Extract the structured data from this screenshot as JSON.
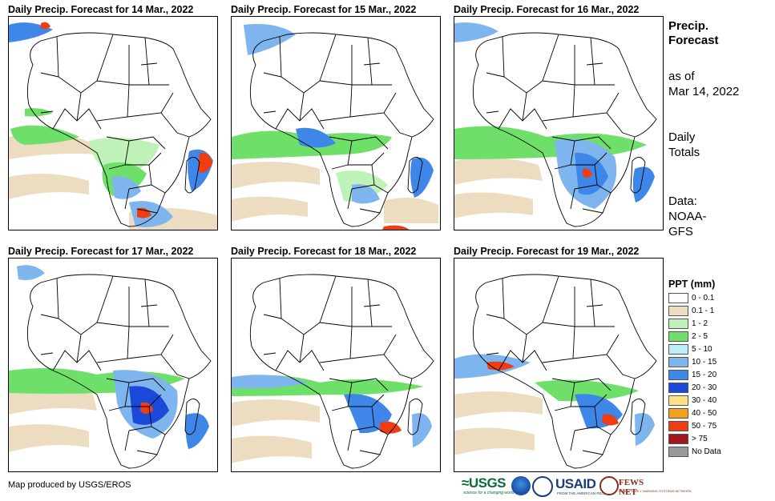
{
  "panels": [
    {
      "title": "Daily Precip. Forecast for 14 Mar., 2022"
    },
    {
      "title": "Daily Precip. Forecast for 15 Mar., 2022"
    },
    {
      "title": "Daily Precip. Forecast for 16 Mar., 2022"
    },
    {
      "title": "Daily Precip. Forecast for 17 Mar., 2022"
    },
    {
      "title": "Daily Precip. Forecast for 18 Mar., 2022"
    },
    {
      "title": "Daily Precip. Forecast for 19 Mar., 2022"
    }
  ],
  "side": {
    "title_line1": "Precip.",
    "title_line2": "Forecast",
    "asof_line1": "as of",
    "asof_line2": "Mar 14, 2022",
    "totals_line1": "Daily",
    "totals_line2": "Totals",
    "data_line1": "Data:",
    "data_line2": "NOAA-",
    "data_line3": "GFS"
  },
  "legend": {
    "title": "PPT (mm)",
    "items": [
      {
        "label": "0 - 0.1",
        "color": "#ffffff"
      },
      {
        "label": "0.1 - 1",
        "color": "#ecdcc0"
      },
      {
        "label": "1 - 2",
        "color": "#bff2b8"
      },
      {
        "label": "2 - 5",
        "color": "#6ee06a"
      },
      {
        "label": "5 - 10",
        "color": "#bdeef7"
      },
      {
        "label": "10 - 15",
        "color": "#7fb5ee"
      },
      {
        "label": "15 - 20",
        "color": "#3e87e8"
      },
      {
        "label": "20 - 30",
        "color": "#1b49d9"
      },
      {
        "label": "30 - 40",
        "color": "#fde28a"
      },
      {
        "label": "40 - 50",
        "color": "#f59f1e"
      },
      {
        "label": "50 - 75",
        "color": "#ee3d12"
      },
      {
        "label": "> 75",
        "color": "#a3171b"
      },
      {
        "label": "No Data",
        "color": "#999999"
      }
    ]
  },
  "footer": {
    "credit": "Map produced by USGS/EROS"
  },
  "logos": {
    "usgs": "≈USGS",
    "usgs_tag": "science for a changing world",
    "usaid": "USAID",
    "usaid_tag": "FROM THE AMERICAN PEOPLE",
    "fews": "FEWS NET",
    "fews_tag": "FAMINE EARLY WARNING SYSTEMS NETWORK"
  }
}
